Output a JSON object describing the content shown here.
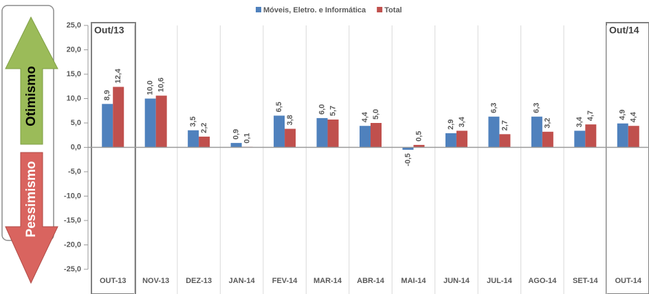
{
  "chart_data": {
    "type": "bar",
    "categories": [
      "OUT-13",
      "NOV-13",
      "DEZ-13",
      "JAN-14",
      "FEV-14",
      "MAR-14",
      "ABR-14",
      "MAI-14",
      "JUN-14",
      "JUL-14",
      "AGO-14",
      "SET-14",
      "OUT-14"
    ],
    "series": [
      {
        "name": "Móveis, Eletro. e Informática",
        "color": "#4f81bd",
        "values": [
          8.9,
          10.0,
          3.5,
          0.9,
          6.5,
          6.0,
          4.4,
          -0.5,
          2.9,
          6.3,
          6.3,
          3.4,
          4.9
        ],
        "value_labels": [
          "8,9",
          "10,0",
          "3,5",
          "0,9",
          "6,5",
          "6,0",
          "4,4",
          "-0,5",
          "2,9",
          "6,3",
          "6,3",
          "3,4",
          "4,9"
        ]
      },
      {
        "name": "Total",
        "color": "#c0504d",
        "values": [
          12.4,
          10.6,
          2.2,
          0.1,
          3.8,
          5.7,
          5.0,
          0.5,
          3.4,
          2.7,
          3.2,
          4.7,
          4.4
        ],
        "value_labels": [
          "12,4",
          "10,6",
          "2,2",
          "0,1",
          "3,8",
          "5,7",
          "5,0",
          "0,5",
          "3,4",
          "2,7",
          "3,2",
          "4,7",
          "4,4"
        ]
      }
    ],
    "ylim": [
      -25,
      25
    ],
    "yticks": [
      {
        "value": -25,
        "label": "-25,0"
      },
      {
        "value": -20,
        "label": "-20,0"
      },
      {
        "value": -15,
        "label": "-15,0"
      },
      {
        "value": -10,
        "label": "-10,0"
      },
      {
        "value": -5,
        "label": "-5,0"
      },
      {
        "value": 0,
        "label": "0,0"
      },
      {
        "value": 5,
        "label": "5,0"
      },
      {
        "value": 10,
        "label": "10,0"
      },
      {
        "value": 15,
        "label": "15,0"
      },
      {
        "value": 20,
        "label": "20,0"
      },
      {
        "value": 25,
        "label": "25,0"
      }
    ],
    "legend": "top",
    "annotations": {
      "optimism": "Otimismo",
      "pessimism": "Pessimismo",
      "start": "Out/13",
      "end": "Out/14"
    }
  }
}
